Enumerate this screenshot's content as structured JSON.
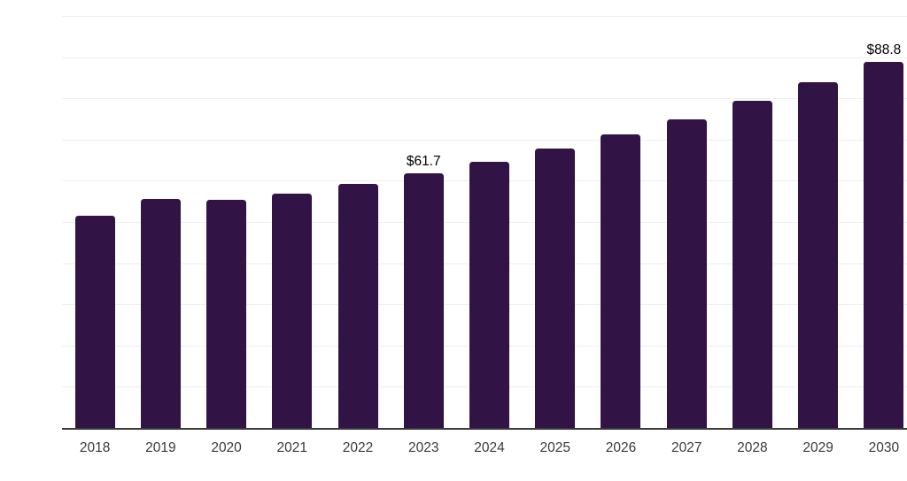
{
  "chart_data": {
    "type": "bar",
    "categories": [
      "2018",
      "2019",
      "2020",
      "2021",
      "2022",
      "2023",
      "2024",
      "2025",
      "2026",
      "2027",
      "2028",
      "2029",
      "2030"
    ],
    "values": [
      51.6,
      55.6,
      55.3,
      56.8,
      59.3,
      61.7,
      64.7,
      67.9,
      71.3,
      75.0,
      79.3,
      84.0,
      88.8
    ],
    "data_labels": {
      "2023": "$61.7",
      "2030": "$88.8"
    },
    "title": "",
    "xlabel": "",
    "ylabel": "",
    "ylim": [
      0,
      100
    ],
    "grid": "horizontal",
    "gridline_step": 10,
    "y_tick_labels_visible": false,
    "legend": "none",
    "colors": {
      "bar": "#311345",
      "axis_line": "#3b3b3b",
      "gridline": "#f0f0f0",
      "tick_label": "#3a3a3a",
      "data_label": "#000000",
      "background": "#ffffff"
    }
  }
}
